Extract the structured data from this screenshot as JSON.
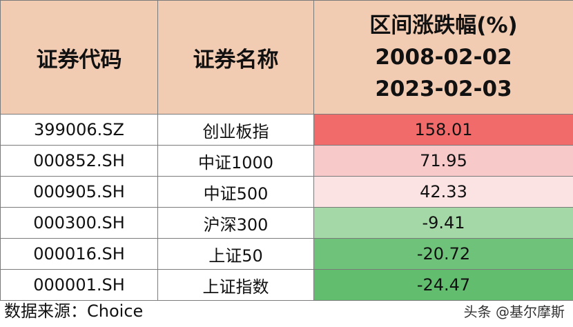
{
  "header": {
    "col_code": "证券代码",
    "col_name": "证券名称",
    "col_change_title": "区间涨跌幅(%)",
    "col_change_start": "2008-02-02",
    "col_change_end": "2023-02-03"
  },
  "rows": [
    {
      "code": "399006.SZ",
      "name": "创业板指",
      "change": "158.01",
      "color": "#f26b6b"
    },
    {
      "code": "000852.SH",
      "name": "中证1000",
      "change": "71.95",
      "color": "#f8c9c9"
    },
    {
      "code": "000905.SH",
      "name": "中证500",
      "change": "42.33",
      "color": "#fbe3e3"
    },
    {
      "code": "000300.SH",
      "name": "沪深300",
      "change": "-9.41",
      "color": "#a4d8a6"
    },
    {
      "code": "000016.SH",
      "name": "上证50",
      "change": "-20.72",
      "color": "#6fc27a"
    },
    {
      "code": "000001.SH",
      "name": "上证指数",
      "change": "-24.47",
      "color": "#62bd6e"
    }
  ],
  "footer": {
    "source": "数据来源：Choice",
    "watermark": "头条 @基尔摩斯"
  }
}
